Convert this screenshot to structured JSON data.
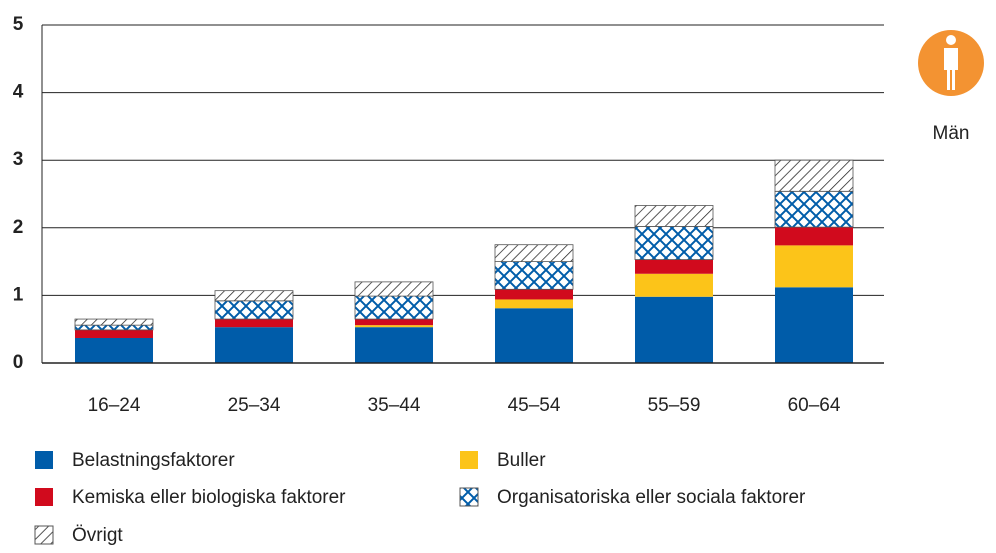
{
  "chart_data": {
    "type": "stacked_bar",
    "annotation": "Män",
    "categories": [
      "16–24",
      "25–34",
      "35–44",
      "45–54",
      "55–59",
      "60–64"
    ],
    "series": [
      {
        "name": "Belastningsfaktorer",
        "color": "#005ca9",
        "pattern": "solid",
        "values": [
          0.37,
          0.53,
          0.53,
          0.81,
          0.98,
          1.12
        ]
      },
      {
        "name": "Buller",
        "color": "#fcc419",
        "pattern": "solid",
        "values": [
          0,
          0,
          0.03,
          0.13,
          0.34,
          0.62
        ]
      },
      {
        "name": "Kemiska eller biologiska faktorer",
        "color": "#d10a1d",
        "pattern": "solid",
        "values": [
          0.12,
          0.12,
          0.09,
          0.15,
          0.21,
          0.27
        ]
      },
      {
        "name": "Organisatoriska eller sociala faktorer",
        "color": "#005ca9",
        "pattern": "crosshatch",
        "values": [
          0.07,
          0.27,
          0.34,
          0.41,
          0.49,
          0.53
        ]
      },
      {
        "name": "Övrigt",
        "color": "#222222",
        "pattern": "hatch",
        "values": [
          0.09,
          0.15,
          0.21,
          0.25,
          0.31,
          0.46
        ]
      }
    ],
    "ylim": [
      0,
      5
    ],
    "yticks": [
      0,
      1,
      2,
      3,
      4,
      5
    ],
    "grid": true
  }
}
